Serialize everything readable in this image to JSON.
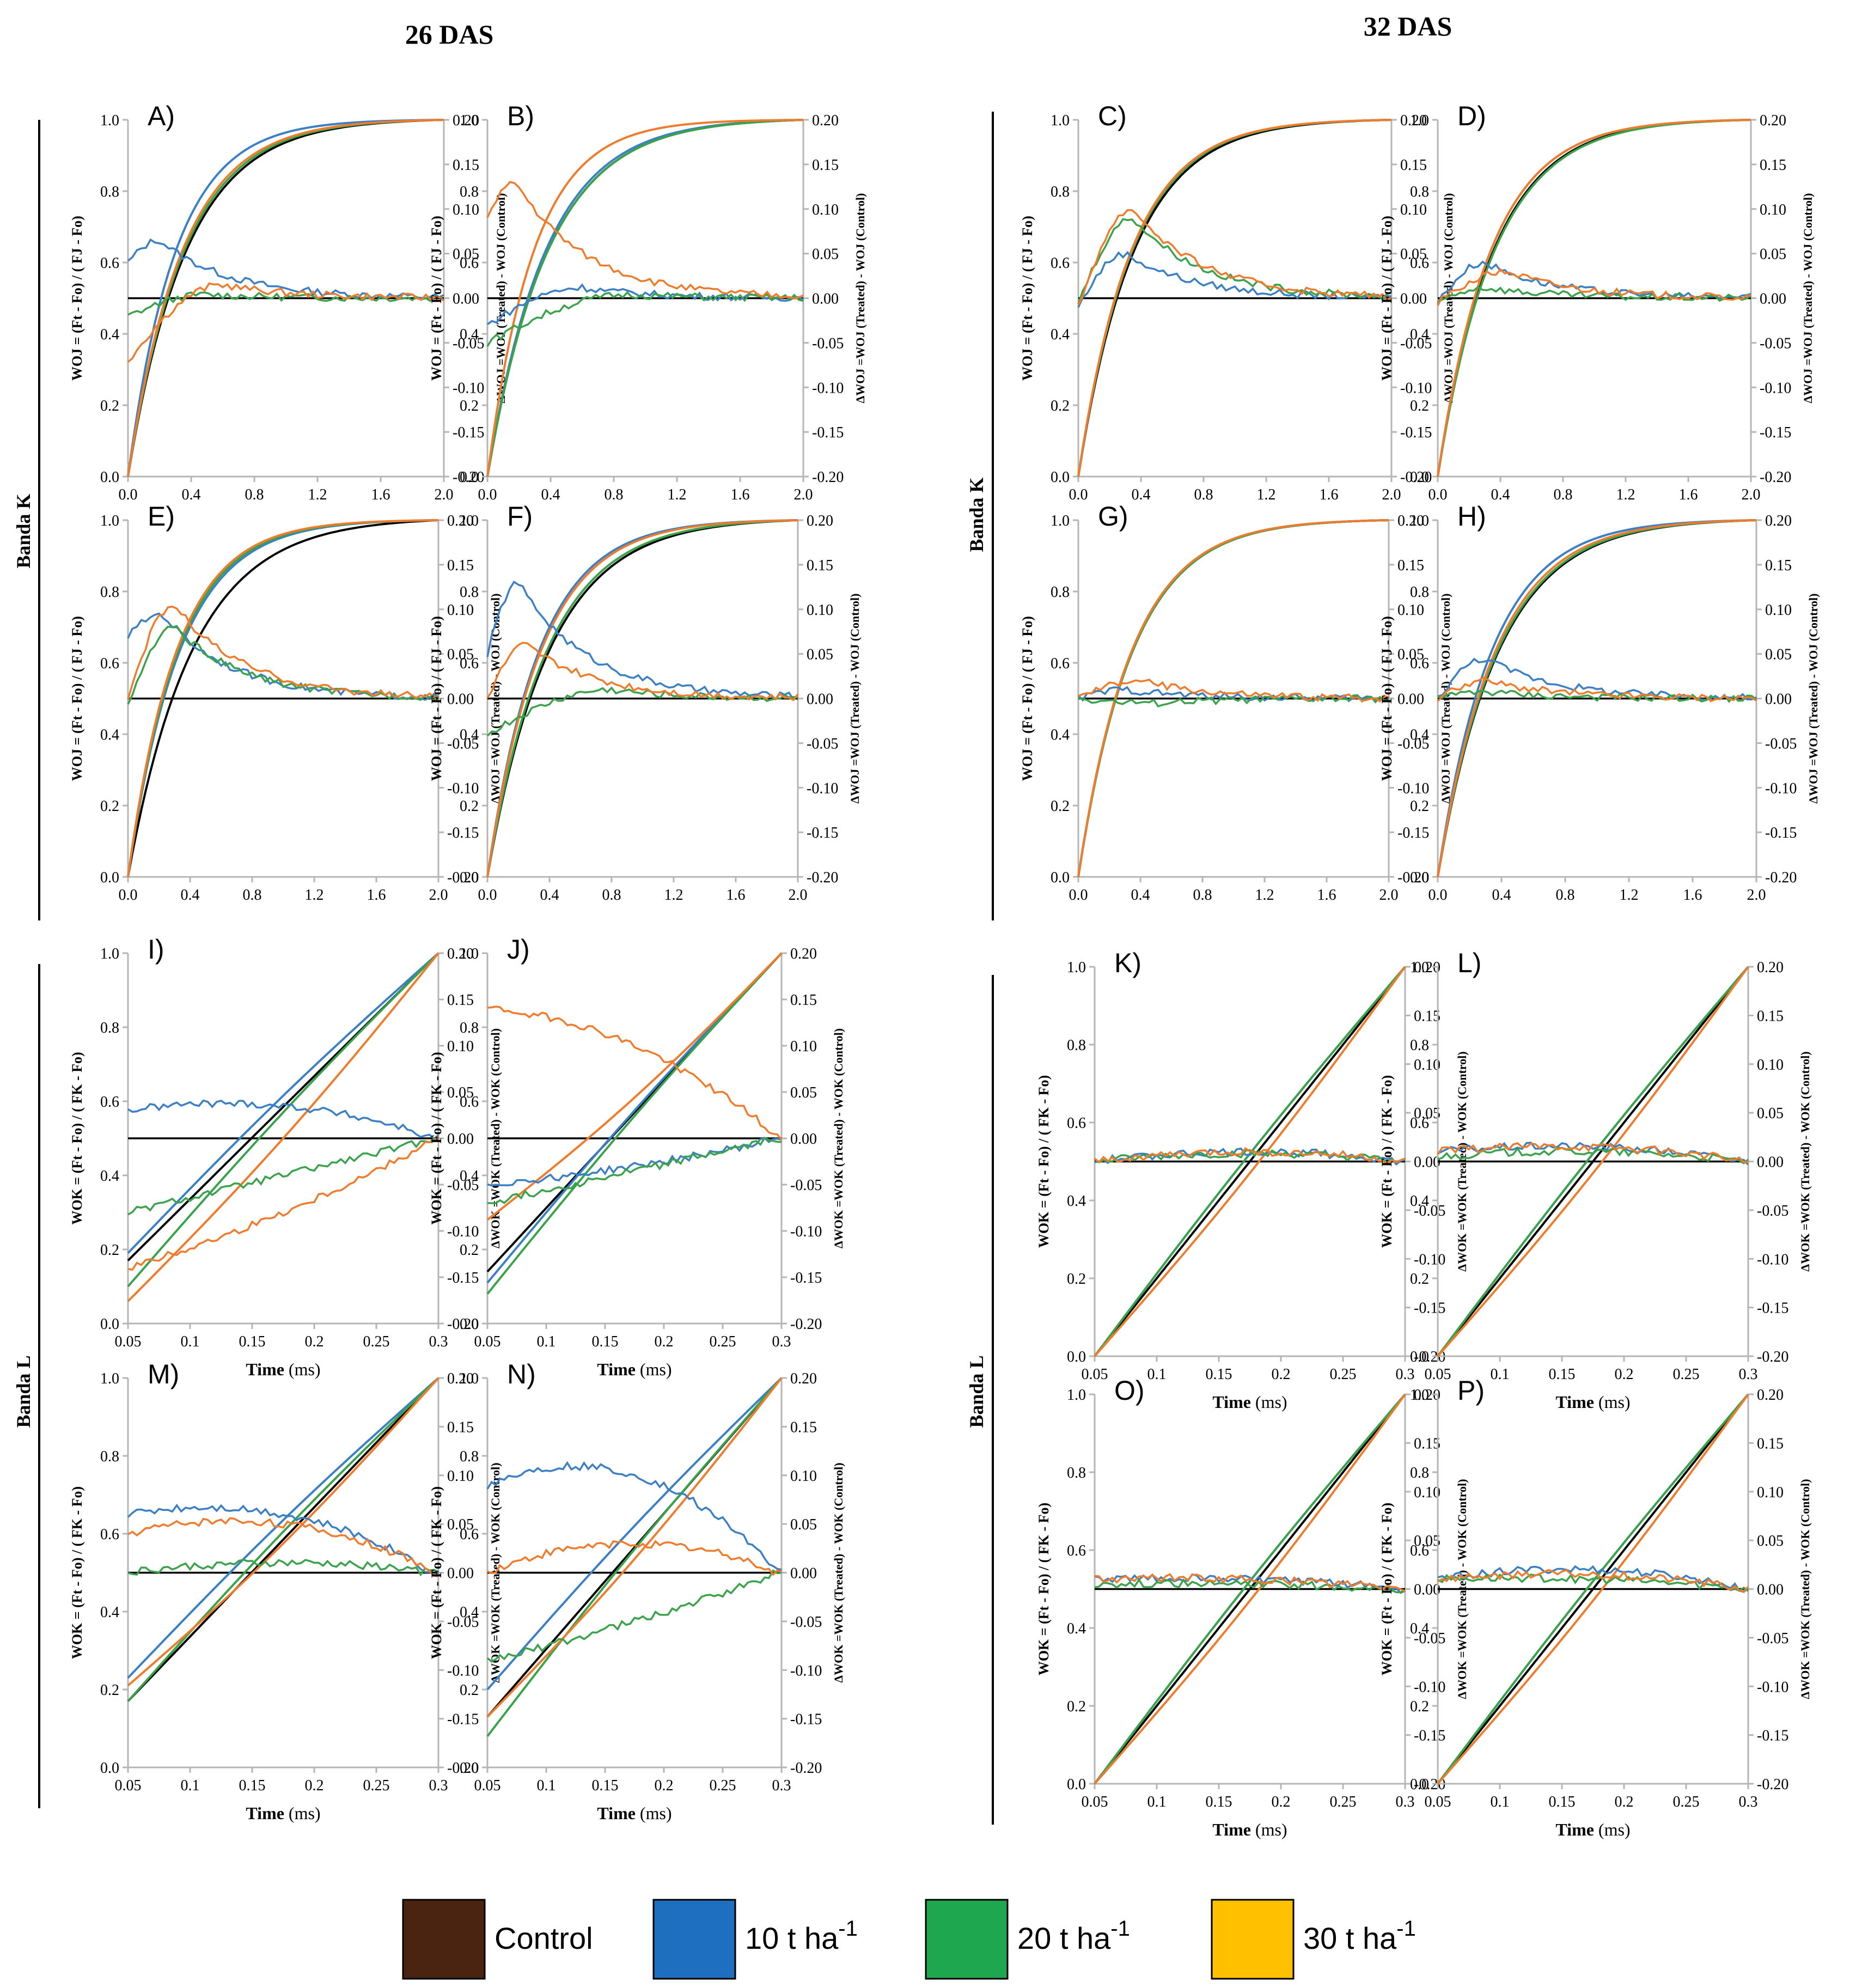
{
  "groups": {
    "das26": "26 DAS",
    "das32": "32 DAS"
  },
  "band_labels": {
    "k": "Banda K",
    "l": "Banda L"
  },
  "axis_text": {
    "k_left": "WOJ = (Ft - Fo) / ( FJ - Fo)",
    "k_right": "ΔWOJ =WOJ (Treated) - WOJ (Control)",
    "l_left": "WOK = (Ft - Fo) / ( FK - Fo)",
    "l_right": "ΔWOK =WOK (Treated) - WOK (Control)",
    "x_title_bold": "Time",
    "x_title_unit": " (ms)"
  },
  "k_ticks": {
    "x": [
      "0.0",
      "0.4",
      "0.8",
      "1.2",
      "1.6",
      "2.0"
    ],
    "yl": [
      "0.0",
      "0.2",
      "0.4",
      "0.6",
      "0.8",
      "1.0"
    ],
    "yr": [
      "-0.20",
      "-0.15",
      "-0.10",
      "-0.05",
      "0.00",
      "0.05",
      "0.10",
      "0.15",
      "0.20"
    ]
  },
  "l_ticks": {
    "x": [
      "0.05",
      "0.1",
      "0.15",
      "0.2",
      "0.25",
      "0.3"
    ],
    "yl": [
      "0.0",
      "0.2",
      "0.4",
      "0.6",
      "0.8",
      "1.0"
    ],
    "yr": [
      "-0.20",
      "-0.15",
      "-0.10",
      "-0.05",
      "0.00",
      "0.05",
      "0.10",
      "0.15",
      "0.20"
    ]
  },
  "legend": [
    {
      "label": "Control",
      "sup": "",
      "color": "#4a2410"
    },
    {
      "label": "10 t ha",
      "sup": "-1",
      "color": "#1f6fc0"
    },
    {
      "label": "20 t ha",
      "sup": "-1",
      "color": "#1fa74f"
    },
    {
      "label": "30 t ha",
      "sup": "-1",
      "color": "#ffc000"
    }
  ],
  "chart_data": [
    {
      "panel": "A)",
      "type": "line",
      "band": "K",
      "das": "26",
      "xlabel": "Time (ms)",
      "xlim": [
        0,
        2
      ],
      "ylim_left": [
        0,
        1
      ],
      "ylim_right": [
        -0.2,
        0.2
      ],
      "rise_k": {
        "Control": 2.7,
        "10 t ha-1": 3.3,
        "20 t ha-1": 2.8,
        "30 t ha-1": 2.9
      },
      "delta_peak": {
        "10 t ha-1": 0.065,
        "20 t ha-1": 0.004,
        "30 t ha-1": 0.015
      },
      "delta_peak_time": {
        "10 t ha-1": 0.2,
        "20 t ha-1": 0.5,
        "30 t ha-1": 0.6
      },
      "delta_start": {
        "10 t ha-1": 0.04,
        "20 t ha-1": -0.02,
        "30 t ha-1": -0.07
      }
    },
    {
      "panel": "B)",
      "type": "line",
      "band": "K",
      "das": "26",
      "xlabel": "Time (ms)",
      "xlim": [
        0,
        2
      ],
      "ylim_left": [
        0,
        1
      ],
      "ylim_right": [
        -0.2,
        0.2
      ],
      "rise_k": {
        "Control": 2.6,
        "10 t ha-1": 2.7,
        "20 t ha-1": 2.6,
        "30 t ha-1": 3.4
      },
      "delta_peak": {
        "10 t ha-1": 0.012,
        "20 t ha-1": 0.004,
        "30 t ha-1": 0.13
      },
      "delta_peak_time": {
        "10 t ha-1": 0.6,
        "20 t ha-1": 0.9,
        "30 t ha-1": 0.18
      },
      "delta_start": {
        "10 t ha-1": -0.03,
        "20 t ha-1": -0.05,
        "30 t ha-1": 0.09
      }
    },
    {
      "panel": "C)",
      "type": "line",
      "band": "K",
      "das": "32",
      "xlabel": "Time (ms)",
      "xlim": [
        0,
        2
      ],
      "ylim_left": [
        0,
        1
      ],
      "ylim_right": [
        -0.2,
        0.2
      ],
      "rise_k": {
        "Control": 2.8,
        "10 t ha-1": 2.9,
        "20 t ha-1": 2.9,
        "30 t ha-1": 2.95
      },
      "delta_peak": {
        "10 t ha-1": 0.05,
        "20 t ha-1": 0.09,
        "30 t ha-1": 0.1
      },
      "delta_peak_time": {
        "10 t ha-1": 0.3,
        "20 t ha-1": 0.35,
        "30 t ha-1": 0.35
      },
      "delta_start": {
        "10 t ha-1": -0.01,
        "20 t ha-1": -0.005,
        "30 t ha-1": -0.01
      }
    },
    {
      "panel": "D)",
      "type": "line",
      "band": "K",
      "das": "32",
      "xlabel": "Time (ms)",
      "xlim": [
        0,
        2
      ],
      "ylim_left": [
        0,
        1
      ],
      "ylim_right": [
        -0.2,
        0.2
      ],
      "rise_k": {
        "Control": 2.8,
        "10 t ha-1": 2.95,
        "20 t ha-1": 2.75,
        "30 t ha-1": 2.95
      },
      "delta_peak": {
        "10 t ha-1": 0.04,
        "20 t ha-1": 0.012,
        "30 t ha-1": 0.03
      },
      "delta_peak_time": {
        "10 t ha-1": 0.3,
        "20 t ha-1": 0.3,
        "30 t ha-1": 0.45
      },
      "delta_start": {
        "10 t ha-1": -0.005,
        "20 t ha-1": -0.005,
        "30 t ha-1": -0.005
      }
    },
    {
      "panel": "E)",
      "type": "line",
      "band": "K",
      "das": "26",
      "xlabel": "Time (ms)",
      "xlim": [
        0,
        2
      ],
      "ylim_left": [
        0,
        1
      ],
      "ylim_right": [
        -0.2,
        0.2
      ],
      "rise_k": {
        "Control": 2.4,
        "10 t ha-1": 3.0,
        "20 t ha-1": 3.1,
        "30 t ha-1": 3.2
      },
      "delta_peak": {
        "10 t ha-1": 0.095,
        "20 t ha-1": 0.08,
        "30 t ha-1": 0.105
      },
      "delta_peak_time": {
        "10 t ha-1": 0.22,
        "20 t ha-1": 0.3,
        "30 t ha-1": 0.3
      },
      "delta_start": {
        "10 t ha-1": 0.07,
        "20 t ha-1": -0.01,
        "30 t ha-1": 0.0
      }
    },
    {
      "panel": "F)",
      "type": "line",
      "band": "K",
      "das": "26",
      "xlabel": "Time (ms)",
      "xlim": [
        0,
        2
      ],
      "ylim_left": [
        0,
        1
      ],
      "ylim_right": [
        -0.2,
        0.2
      ],
      "rise_k": {
        "Control": 2.5,
        "10 t ha-1": 3.0,
        "20 t ha-1": 2.6,
        "30 t ha-1": 2.9
      },
      "delta_peak": {
        "10 t ha-1": 0.13,
        "20 t ha-1": 0.01,
        "30 t ha-1": 0.06
      },
      "delta_peak_time": {
        "10 t ha-1": 0.2,
        "20 t ha-1": 0.8,
        "30 t ha-1": 0.25
      },
      "delta_start": {
        "10 t ha-1": 0.05,
        "20 t ha-1": -0.04,
        "30 t ha-1": 0.0
      }
    },
    {
      "panel": "G)",
      "type": "line",
      "band": "K",
      "das": "32",
      "xlabel": "Time (ms)",
      "xlim": [
        0,
        2
      ],
      "ylim_left": [
        0,
        1
      ],
      "ylim_right": [
        -0.2,
        0.2
      ],
      "rise_k": {
        "Control": 2.85,
        "10 t ha-1": 2.9,
        "20 t ha-1": 2.85,
        "30 t ha-1": 2.9
      },
      "delta_peak": {
        "10 t ha-1": 0.01,
        "20 t ha-1": -0.005,
        "30 t ha-1": 0.02
      },
      "delta_peak_time": {
        "10 t ha-1": 0.3,
        "20 t ha-1": 0.5,
        "30 t ha-1": 0.4
      },
      "delta_start": {
        "10 t ha-1": 0.0,
        "20 t ha-1": 0.0,
        "30 t ha-1": 0.0
      }
    },
    {
      "panel": "H)",
      "type": "line",
      "band": "K",
      "das": "32",
      "xlabel": "Time (ms)",
      "xlim": [
        0,
        2
      ],
      "ylim_left": [
        0,
        1
      ],
      "ylim_right": [
        -0.2,
        0.2
      ],
      "rise_k": {
        "Control": 2.6,
        "10 t ha-1": 2.95,
        "20 t ha-1": 2.65,
        "30 t ha-1": 2.75
      },
      "delta_peak": {
        "10 t ha-1": 0.045,
        "20 t ha-1": 0.008,
        "30 t ha-1": 0.02
      },
      "delta_peak_time": {
        "10 t ha-1": 0.3,
        "20 t ha-1": 0.3,
        "30 t ha-1": 0.3
      },
      "delta_start": {
        "10 t ha-1": 0.0,
        "20 t ha-1": 0.0,
        "30 t ha-1": 0.0
      }
    },
    {
      "panel": "I)",
      "type": "line",
      "band": "L",
      "das": "26",
      "xlabel": "Time (ms)",
      "xlim": [
        0.05,
        0.3
      ],
      "ylim_left": [
        0,
        1
      ],
      "ylim_right": [
        -0.2,
        0.2
      ],
      "start_value": {
        "Control": 0.17,
        "10 t ha-1": 0.19,
        "20 t ha-1": 0.1,
        "30 t ha-1": 0.06
      },
      "delta_start": {
        "10 t ha-1": 0.03,
        "20 t ha-1": -0.08,
        "30 t ha-1": -0.14
      },
      "delta_mid": {
        "10 t ha-1": 0.035,
        "20 t ha-1": -0.04,
        "30 t ha-1": -0.08
      }
    },
    {
      "panel": "J)",
      "type": "line",
      "band": "L",
      "das": "26",
      "xlabel": "Time (ms)",
      "xlim": [
        0.05,
        0.3
      ],
      "ylim_left": [
        0,
        1
      ],
      "ylim_right": [
        -0.2,
        0.2
      ],
      "start_value": {
        "Control": 0.14,
        "10 t ha-1": 0.11,
        "20 t ha-1": 0.08,
        "30 t ha-1": 0.28
      },
      "delta_start": {
        "10 t ha-1": -0.05,
        "20 t ha-1": -0.07,
        "30 t ha-1": 0.14
      },
      "delta_mid": {
        "10 t ha-1": -0.03,
        "20 t ha-1": -0.035,
        "30 t ha-1": 0.1
      }
    },
    {
      "panel": "K)",
      "type": "line",
      "band": "L",
      "das": "32",
      "xlabel": "Time (ms)",
      "xlim": [
        0.05,
        0.3
      ],
      "ylim_left": [
        0,
        1
      ],
      "ylim_right": [
        -0.2,
        0.2
      ],
      "start_value": {
        "Control": 0.0,
        "10 t ha-1": 0.0,
        "20 t ha-1": 0.0,
        "30 t ha-1": 0.0
      },
      "delta_start": {
        "10 t ha-1": 0.0,
        "20 t ha-1": 0.0,
        "30 t ha-1": 0.0
      },
      "delta_mid": {
        "10 t ha-1": 0.01,
        "20 t ha-1": 0.008,
        "30 t ha-1": 0.01
      }
    },
    {
      "panel": "L)",
      "type": "line",
      "band": "L",
      "das": "32",
      "xlabel": "Time (ms)",
      "xlim": [
        0.05,
        0.3
      ],
      "ylim_left": [
        0,
        1
      ],
      "ylim_right": [
        -0.2,
        0.2
      ],
      "start_value": {
        "Control": 0.0,
        "10 t ha-1": 0.0,
        "20 t ha-1": 0.0,
        "30 t ha-1": 0.0
      },
      "delta_start": {
        "10 t ha-1": 0.01,
        "20 t ha-1": 0.005,
        "30 t ha-1": 0.01
      },
      "delta_mid": {
        "10 t ha-1": 0.015,
        "20 t ha-1": 0.01,
        "30 t ha-1": 0.015
      }
    },
    {
      "panel": "M)",
      "type": "line",
      "band": "L",
      "das": "26",
      "xlabel": "Time (ms)",
      "xlim": [
        0.05,
        0.3
      ],
      "ylim_left": [
        0,
        1
      ],
      "ylim_right": [
        -0.2,
        0.2
      ],
      "start_value": {
        "Control": 0.17,
        "10 t ha-1": 0.23,
        "20 t ha-1": 0.17,
        "30 t ha-1": 0.21
      },
      "delta_start": {
        "10 t ha-1": 0.06,
        "20 t ha-1": 0.0,
        "30 t ha-1": 0.04
      },
      "delta_mid": {
        "10 t ha-1": 0.06,
        "20 t ha-1": 0.01,
        "30 t ha-1": 0.05
      }
    },
    {
      "panel": "N)",
      "type": "line",
      "band": "L",
      "das": "26",
      "xlabel": "Time (ms)",
      "xlim": [
        0.05,
        0.3
      ],
      "ylim_left": [
        0,
        1
      ],
      "ylim_right": [
        -0.2,
        0.2
      ],
      "start_value": {
        "Control": 0.13,
        "10 t ha-1": 0.2,
        "20 t ha-1": 0.08,
        "30 t ha-1": 0.13
      },
      "delta_start": {
        "10 t ha-1": 0.09,
        "20 t ha-1": -0.09,
        "30 t ha-1": 0.0
      },
      "delta_mid": {
        "10 t ha-1": 0.1,
        "20 t ha-1": -0.05,
        "30 t ha-1": 0.03
      }
    },
    {
      "panel": "O)",
      "type": "line",
      "band": "L",
      "das": "32",
      "xlabel": "Time (ms)",
      "xlim": [
        0.05,
        0.3
      ],
      "ylim_left": [
        0,
        1
      ],
      "ylim_right": [
        -0.2,
        0.2
      ],
      "start_value": {
        "Control": 0.0,
        "10 t ha-1": 0.0,
        "20 t ha-1": 0.0,
        "30 t ha-1": 0.0
      },
      "delta_start": {
        "10 t ha-1": 0.01,
        "20 t ha-1": 0.005,
        "30 t ha-1": 0.01
      },
      "delta_mid": {
        "10 t ha-1": 0.01,
        "20 t ha-1": 0.005,
        "30 t ha-1": 0.01
      }
    },
    {
      "panel": "P)",
      "type": "line",
      "band": "L",
      "das": "32",
      "xlabel": "Time (ms)",
      "xlim": [
        0.05,
        0.3
      ],
      "ylim_left": [
        0,
        1
      ],
      "ylim_right": [
        -0.2,
        0.2
      ],
      "start_value": {
        "Control": 0.0,
        "10 t ha-1": 0.0,
        "20 t ha-1": 0.0,
        "30 t ha-1": 0.0
      },
      "delta_start": {
        "10 t ha-1": 0.01,
        "20 t ha-1": 0.01,
        "30 t ha-1": 0.01
      },
      "delta_mid": {
        "10 t ha-1": 0.02,
        "20 t ha-1": 0.01,
        "30 t ha-1": 0.015
      }
    }
  ]
}
